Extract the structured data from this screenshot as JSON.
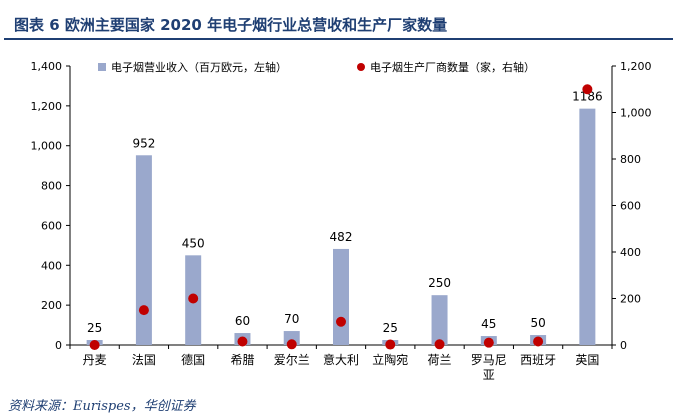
{
  "figure": {
    "title": "图表 6   欧洲主要国家 2020 年电子烟行业总营收和生产厂家数量",
    "source": "资料来源：Eurispes，华创证券"
  },
  "colors": {
    "bar": "#9aa8cc",
    "dot": "#c00000",
    "title": "#1f3f73",
    "axis": "#000000"
  },
  "chart_data": {
    "type": "bar",
    "categories": [
      "丹麦",
      "法国",
      "德国",
      "希腊",
      "爱尔兰",
      "意大利",
      "立陶宛",
      "荷兰",
      "罗马尼亚",
      "西班牙",
      "英国"
    ],
    "series": [
      {
        "name": "电子烟营业收入（百万欧元，左轴）",
        "type": "bar",
        "axis": "left",
        "values": [
          25,
          952,
          450,
          60,
          70,
          482,
          25,
          250,
          45,
          50,
          1186
        ],
        "labels": [
          "25",
          "952",
          "450",
          "60",
          "70",
          "482",
          "25",
          "250",
          "45",
          "50",
          "1186"
        ]
      },
      {
        "name": "电子烟生产厂商数量（家，右轴）",
        "type": "scatter",
        "axis": "right",
        "values": [
          0,
          150,
          200,
          15,
          3,
          100,
          2,
          3,
          10,
          15,
          1100
        ]
      }
    ],
    "y_left": {
      "min": 0,
      "max": 1400,
      "ticks": [
        "0",
        "200",
        "400",
        "600",
        "800",
        "1,000",
        "1,200",
        "1,400"
      ]
    },
    "y_right": {
      "min": 0,
      "max": 1200,
      "ticks": [
        "0",
        "200",
        "400",
        "600",
        "800",
        "1,000",
        "1,200"
      ]
    },
    "legend_position": "top"
  }
}
